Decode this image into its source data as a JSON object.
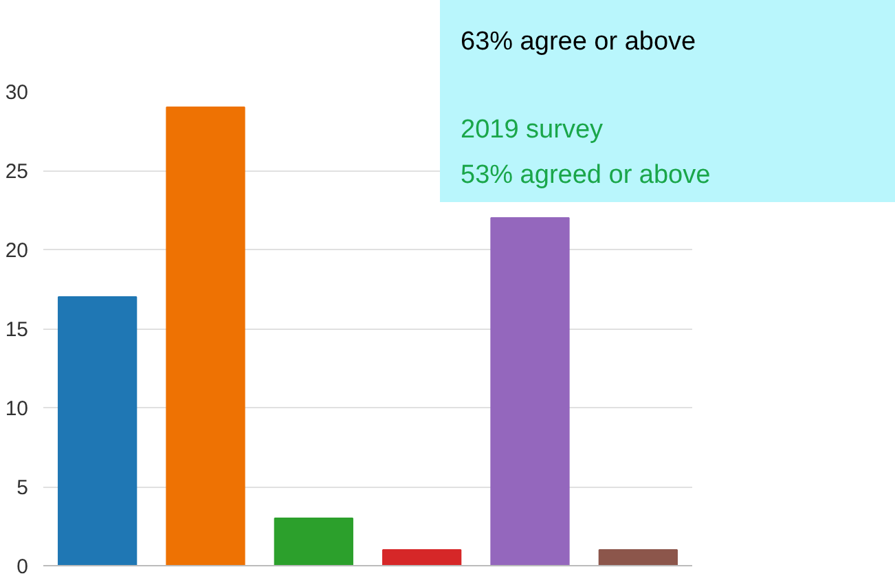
{
  "chart_data": {
    "type": "bar",
    "categories": [
      null,
      null,
      null,
      null,
      null,
      null
    ],
    "values": [
      17,
      29,
      3,
      1,
      22,
      1
    ],
    "colors": [
      "#1f77b4",
      "#ee7203",
      "#2ca02c",
      "#d62728",
      "#9467bd",
      "#8c564b"
    ],
    "ylim": [
      0,
      30
    ],
    "yticks": [
      0,
      5,
      10,
      15,
      20,
      25,
      30
    ],
    "grid": "y",
    "tick_labels": "y",
    "annotations": [
      "63% agree or above",
      "2019 survey",
      "53% agreed or above"
    ]
  }
}
